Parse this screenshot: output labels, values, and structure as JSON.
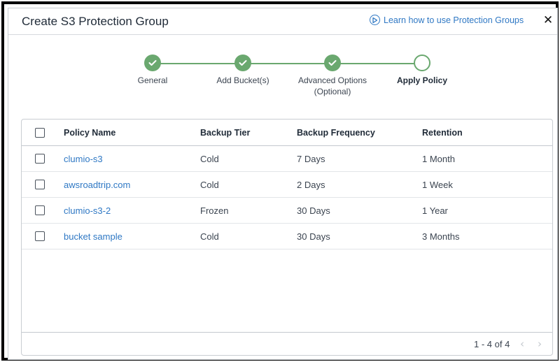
{
  "dialog": {
    "title": "Create S3 Protection Group",
    "learn_link": "Learn how to use Protection Groups",
    "close_symbol": "✕"
  },
  "stepper": {
    "accent_color": "#6aa86f",
    "steps": [
      {
        "label": "General",
        "status": "complete"
      },
      {
        "label": "Add Bucket(s)",
        "status": "complete"
      },
      {
        "label": "Advanced Options",
        "sublabel": "(Optional)",
        "status": "complete"
      },
      {
        "label": "Apply Policy",
        "status": "current"
      }
    ]
  },
  "table": {
    "headers": {
      "policy_name": "Policy Name",
      "backup_tier": "Backup Tier",
      "backup_frequency": "Backup Frequency",
      "retention": "Retention"
    },
    "rows": [
      {
        "policy_name": "clumio-s3",
        "backup_tier": "Cold",
        "backup_frequency": "7 Days",
        "retention": "1 Month"
      },
      {
        "policy_name": "awsroadtrip.com",
        "backup_tier": "Cold",
        "backup_frequency": "2 Days",
        "retention": "1 Week"
      },
      {
        "policy_name": "clumio-s3-2",
        "backup_tier": "Frozen",
        "backup_frequency": "30 Days",
        "retention": "1 Year"
      },
      {
        "policy_name": "bucket sample",
        "backup_tier": "Cold",
        "backup_frequency": "30 Days",
        "retention": "3 Months"
      }
    ],
    "link_color": "#2f78c4"
  },
  "pagination": {
    "range_text": "1 - 4 of 4",
    "prev_symbol": "‹",
    "next_symbol": "›"
  },
  "icons": {
    "learn": "play-circle-icon",
    "step_complete": "check-icon",
    "close": "close-icon"
  }
}
